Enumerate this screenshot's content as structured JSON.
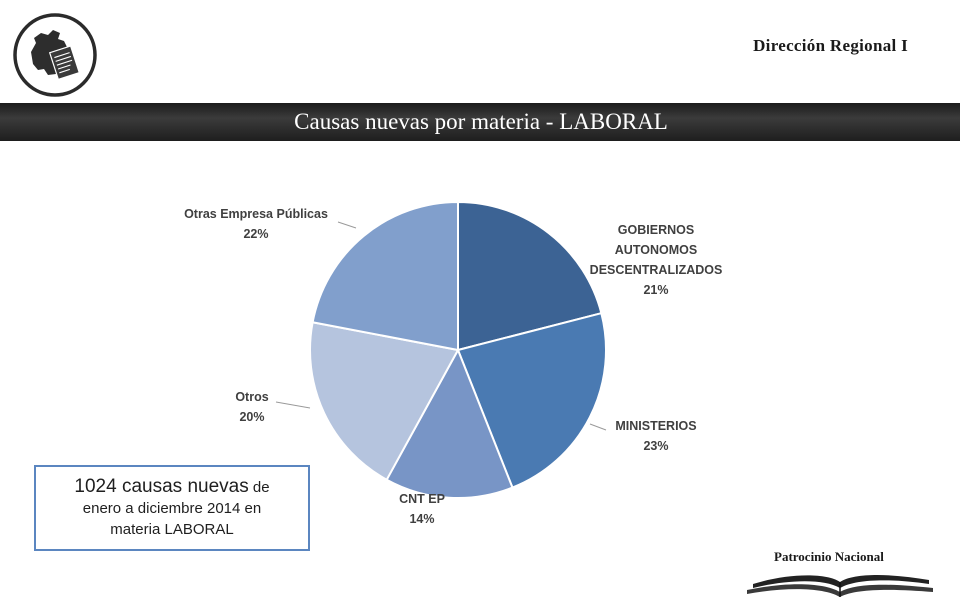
{
  "header": {
    "org": "Dirección Regional I",
    "title": "Causas nuevas por materia - LABORAL"
  },
  "note": {
    "line1_big": "1024 causas nuevas",
    "line1_small": " de",
    "line2": "enero a diciembre 2014 en",
    "line3": "materia LABORAL"
  },
  "footer": {
    "org": "Patrocinio Nacional"
  },
  "colors": {
    "title_band": "#262626",
    "note_border": "#5b86c0"
  },
  "icons": {
    "logo": "ecuador-map-document-icon",
    "footer": "open-book-icon"
  },
  "chart_data": {
    "type": "pie",
    "title": "",
    "slices": [
      {
        "label_lines": [
          "GOBIERNOS",
          "AUTONOMOS",
          "DESCENTRALIZADOS"
        ],
        "label": "GOBIERNOS AUTONOMOS DESCENTRALIZADOS",
        "value": 21,
        "value_label": "21%",
        "color": "#3c6394"
      },
      {
        "label_lines": [
          "MINISTERIOS"
        ],
        "label": "MINISTERIOS",
        "value": 23,
        "value_label": "23%",
        "color": "#4a7ab2"
      },
      {
        "label_lines": [
          "CNT EP"
        ],
        "label": "CNT EP",
        "value": 14,
        "value_label": "14%",
        "color": "#7895c6"
      },
      {
        "label_lines": [
          "Otros"
        ],
        "label": "Otros",
        "value": 20,
        "value_label": "20%",
        "color": "#b5c4de"
      },
      {
        "label_lines": [
          "Otras Empresa Públicas"
        ],
        "label": "Otras Empresa Públicas",
        "value": 22,
        "value_label": "22%",
        "color": "#819fcc"
      }
    ]
  }
}
